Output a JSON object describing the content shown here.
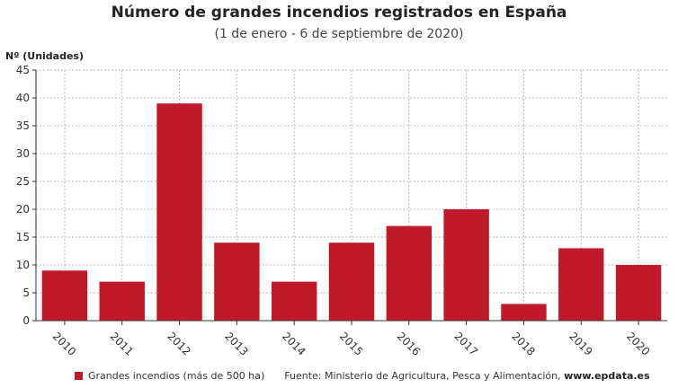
{
  "chart_data": {
    "type": "bar",
    "title": "Número de grandes incendios registrados en España",
    "subtitle": "(1 de enero - 6 de septiembre de 2020)",
    "ylabel": "Nº (Unidades)",
    "xlabel": "",
    "categories": [
      "2010",
      "2011",
      "2012",
      "2013",
      "2014",
      "2015",
      "2016",
      "2017",
      "2018",
      "2019",
      "2020"
    ],
    "series": [
      {
        "name": "Grandes incendios (más de 500 ha)",
        "values": [
          9,
          7,
          39,
          14,
          7,
          14,
          17,
          20,
          3,
          13,
          10
        ]
      }
    ],
    "ylim": [
      0,
      45
    ],
    "yticks": [
      0,
      5,
      10,
      15,
      20,
      25,
      30,
      35,
      40,
      45
    ],
    "grid": true,
    "legend_position": "bottom",
    "colors": {
      "bar": "#c0192a",
      "grid": "#bbbbbb"
    }
  },
  "footer": {
    "source_text": "Fuente: Ministerio de Agricultura, Pesca y Alimentación,",
    "source_site": "www.epdata.es"
  }
}
